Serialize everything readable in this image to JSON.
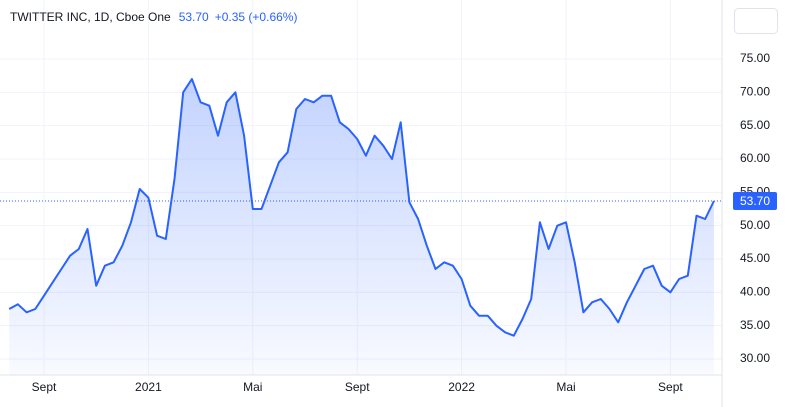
{
  "chart_data": {
    "type": "area",
    "title": "TWITTER INC, 1D, Cboe One",
    "last_price": {
      "value": 53.7,
      "label": "53.70"
    },
    "change_label": "+0.35 (+0.66%)",
    "color": "#2962ff",
    "categories": [
      null,
      null,
      null,
      null,
      "Sept",
      null,
      null,
      null,
      null,
      null,
      null,
      null,
      null,
      null,
      null,
      null,
      "2021",
      null,
      null,
      null,
      null,
      null,
      null,
      null,
      null,
      null,
      null,
      null,
      "Mai",
      null,
      null,
      null,
      null,
      null,
      null,
      null,
      null,
      null,
      null,
      null,
      "Sept",
      null,
      null,
      null,
      null,
      null,
      null,
      null,
      null,
      null,
      null,
      null,
      "2022",
      null,
      null,
      null,
      null,
      null,
      null,
      null,
      null,
      null,
      null,
      null,
      "Mai",
      null,
      null,
      null,
      null,
      null,
      null,
      null,
      null,
      null,
      null,
      null,
      "Sept",
      null,
      null,
      null,
      null,
      null
    ],
    "values": [
      37.5,
      38.2,
      37.0,
      37.5,
      39.5,
      41.5,
      43.5,
      45.5,
      46.5,
      49.5,
      41.0,
      44.0,
      44.5,
      47.0,
      50.5,
      55.5,
      54.2,
      48.5,
      48.0,
      57.0,
      70.0,
      72.0,
      68.5,
      68.0,
      63.5,
      68.5,
      70.0,
      63.5,
      52.5,
      52.5,
      56.0,
      59.5,
      61.0,
      67.5,
      69.0,
      68.5,
      69.5,
      69.5,
      65.5,
      64.5,
      63.0,
      60.5,
      63.5,
      62.0,
      60.0,
      65.5,
      53.5,
      51.0,
      47.0,
      43.5,
      44.5,
      44.0,
      42.0,
      38.0,
      36.5,
      36.5,
      35.0,
      34.0,
      33.5,
      36.0,
      39.0,
      50.5,
      46.5,
      50.0,
      50.5,
      44.5,
      37.0,
      38.5,
      39.0,
      37.5,
      35.5,
      38.5,
      41.0,
      43.5,
      44.0,
      41.0,
      40.0,
      42.0,
      42.5,
      51.5,
      51.0,
      53.7
    ],
    "ylim": [
      27.6,
      83.1
    ],
    "yticks": [
      {
        "value": 30,
        "label": "30.00"
      },
      {
        "value": 35,
        "label": "35.00"
      },
      {
        "value": 40,
        "label": "40.00"
      },
      {
        "value": 45,
        "label": "45.00"
      },
      {
        "value": 50,
        "label": "50.00"
      },
      {
        "value": 55,
        "label": "55.00"
      },
      {
        "value": 60,
        "label": "60.00"
      },
      {
        "value": 65,
        "label": "65.00"
      },
      {
        "value": 70,
        "label": "70.00"
      },
      {
        "value": 75,
        "label": "75.00"
      }
    ],
    "grid": true
  }
}
